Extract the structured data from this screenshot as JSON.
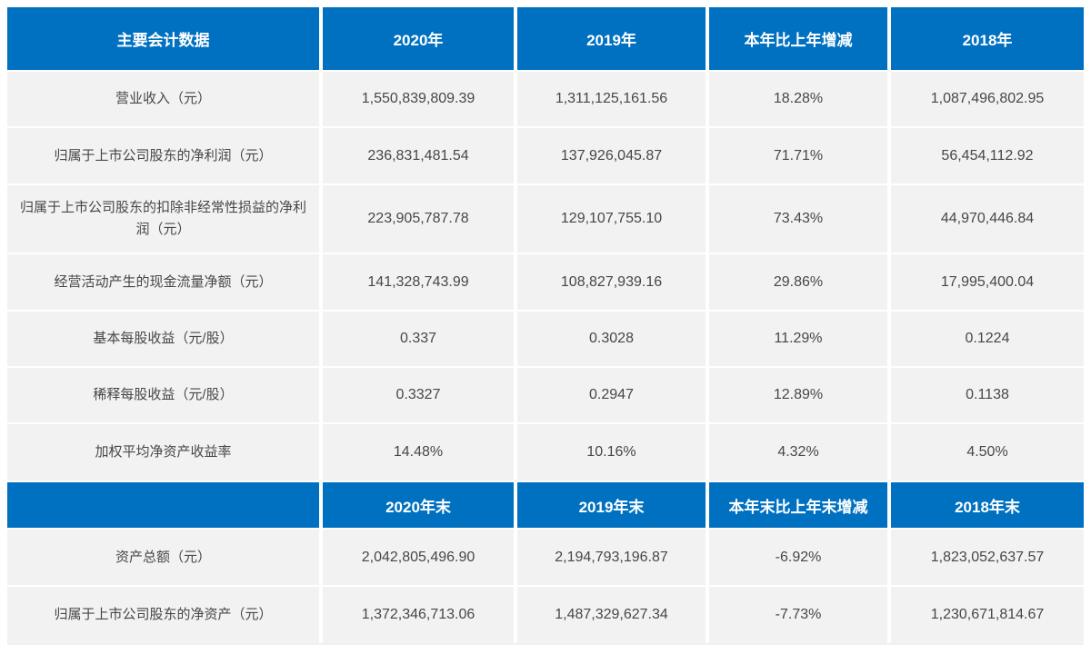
{
  "colors": {
    "page_bg": "#ffffff",
    "header_bg": "#0071C1",
    "header_text": "#ffffff",
    "row_bg": "#f2f2f2",
    "body_text": "#474747"
  },
  "table1": {
    "headers": [
      "主要会计数据",
      "2020年",
      "2019年",
      "本年比上年增减",
      "2018年"
    ],
    "rows": [
      [
        "营业收入（元）",
        "1,550,839,809.39",
        "1,311,125,161.56",
        "18.28%",
        "1,087,496,802.95"
      ],
      [
        "归属于上市公司股东的净利润（元）",
        "236,831,481.54",
        "137,926,045.87",
        "71.71%",
        "56,454,112.92"
      ],
      [
        "归属于上市公司股东的扣除非经常性损益的净利润（元）",
        "223,905,787.78",
        "129,107,755.10",
        "73.43%",
        "44,970,446.84"
      ],
      [
        "经营活动产生的现金流量净额（元）",
        "141,328,743.99",
        "108,827,939.16",
        "29.86%",
        "17,995,400.04"
      ],
      [
        "基本每股收益（元/股）",
        "0.337",
        "0.3028",
        "11.29%",
        "0.1224"
      ],
      [
        "稀释每股收益（元/股）",
        "0.3327",
        "0.2947",
        "12.89%",
        "0.1138"
      ],
      [
        "加权平均净资产收益率",
        "14.48%",
        "10.16%",
        "4.32%",
        "4.50%"
      ]
    ]
  },
  "table2": {
    "headers": [
      "",
      "2020年末",
      "2019年末",
      "本年末比上年末增减",
      "2018年末"
    ],
    "rows": [
      [
        "资产总额（元）",
        "2,042,805,496.90",
        "2,194,793,196.87",
        "-6.92%",
        "1,823,052,637.57"
      ],
      [
        "归属于上市公司股东的净资产（元）",
        "1,372,346,713.06",
        "1,487,329,627.34",
        "-7.73%",
        "1,230,671,814.67"
      ]
    ]
  }
}
